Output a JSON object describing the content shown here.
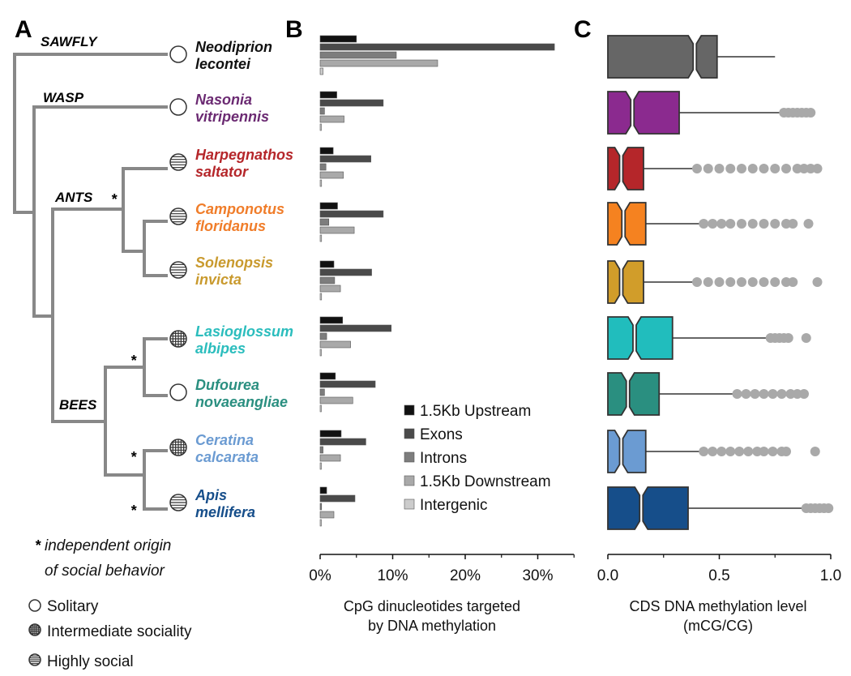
{
  "panels": {
    "a": "A",
    "b": "B",
    "c": "C"
  },
  "groups": [
    {
      "name": "SAWFLY",
      "color": "#111111"
    },
    {
      "name": "WASP",
      "color": "#6b2a72"
    },
    {
      "name": "ANTS",
      "color": "#f07d2a"
    },
    {
      "name": "BEES",
      "color": "#1f6a96"
    }
  ],
  "species": [
    {
      "genus": "Neodiprion",
      "epithet": "lecontei",
      "color": "#111111",
      "social": "solitary"
    },
    {
      "genus": "Nasonia",
      "epithet": "vitripennis",
      "color": "#6b2a72",
      "social": "solitary"
    },
    {
      "genus": "Harpegnathos",
      "epithet": "saltator",
      "color": "#b5262a",
      "social": "high"
    },
    {
      "genus": "Camponotus",
      "epithet": "floridanus",
      "color": "#f07d2a",
      "social": "high"
    },
    {
      "genus": "Solenopsis",
      "epithet": "invicta",
      "color": "#c99a2e",
      "social": "high"
    },
    {
      "genus": "Lasioglossum",
      "epithet": "albipes",
      "color": "#2bbdbd",
      "social": "intermediate"
    },
    {
      "genus": "Dufourea",
      "epithet": "novaeangliae",
      "color": "#2a8f80",
      "social": "solitary"
    },
    {
      "genus": "Ceratina",
      "epithet": "calcarata",
      "color": "#6b9bd2",
      "social": "intermediate"
    },
    {
      "genus": "Apis",
      "epithet": "mellifera",
      "color": "#164e8a",
      "social": "high"
    }
  ],
  "origin_marker": "*",
  "origin_note": [
    "independent origin",
    "of social behavior"
  ],
  "sociality_legend": [
    "Solitary",
    "Intermediate sociality",
    "Highly social"
  ],
  "chart_data": [
    {
      "type": "bar",
      "orientation": "horizontal",
      "categories": [
        "Neodiprion lecontei",
        "Nasonia vitripennis",
        "Harpegnathos saltator",
        "Camponotus floridanus",
        "Solenopsis invicta",
        "Lasioglossum albipes",
        "Dufourea novaeangliae",
        "Ceratina calcarata",
        "Apis mellifera"
      ],
      "series": [
        {
          "name": "1.5Kb Upstream",
          "color": "#111111",
          "values": [
            5.0,
            2.3,
            1.8,
            2.4,
            1.9,
            3.1,
            2.1,
            2.9,
            0.9
          ]
        },
        {
          "name": "Exons",
          "color": "#4a4a4a",
          "values": [
            32.3,
            8.7,
            7.0,
            8.7,
            7.1,
            9.8,
            7.6,
            6.3,
            4.8
          ]
        },
        {
          "name": "Introns",
          "color": "#7d7d7d",
          "values": [
            10.5,
            0.6,
            0.8,
            1.2,
            2.0,
            0.9,
            0.6,
            0.4,
            0.2
          ]
        },
        {
          "name": "1.5Kb Downstream",
          "color": "#a9a9a9",
          "values": [
            16.2,
            3.3,
            3.2,
            4.7,
            2.8,
            4.2,
            4.5,
            2.8,
            1.9
          ]
        },
        {
          "name": "Intergenic",
          "color": "#cccccc",
          "values": [
            0.4,
            0.1,
            0.2,
            0.2,
            0.2,
            0.1,
            0.1,
            0.1,
            0.1
          ]
        }
      ],
      "xlim": [
        0,
        35
      ],
      "xticks": [
        "0%",
        "10%",
        "20%",
        "30%"
      ],
      "xlabel": [
        "CpG dinucleotides targeted",
        "by DNA methylation"
      ],
      "legend_position": "bottom-right"
    },
    {
      "type": "boxplot",
      "orientation": "horizontal",
      "categories": [
        "Neodiprion lecontei",
        "Nasonia vitripennis",
        "Harpegnathos saltator",
        "Camponotus floridanus",
        "Solenopsis invicta",
        "Lasioglossum albipes",
        "Dufourea novaeangliae",
        "Ceratina calcarata",
        "Apis mellifera"
      ],
      "boxes": [
        {
          "q1": 0.0,
          "median": 0.39,
          "q3": 0.49,
          "whisker_high": 0.75,
          "outliers": [],
          "color": "#666666"
        },
        {
          "q1": 0.0,
          "median": 0.11,
          "q3": 0.32,
          "whisker_high": 0.78,
          "outliers": [
            0.79,
            0.81,
            0.83,
            0.85,
            0.87,
            0.89,
            0.91
          ],
          "color": "#8b2a8f"
        },
        {
          "q1": 0.0,
          "median": 0.06,
          "q3": 0.16,
          "whisker_high": 0.39,
          "outliers": [
            0.4,
            0.45,
            0.5,
            0.55,
            0.6,
            0.65,
            0.7,
            0.75,
            0.8,
            0.85,
            0.88,
            0.91,
            0.94
          ],
          "color": "#b5262a"
        },
        {
          "q1": 0.0,
          "median": 0.07,
          "q3": 0.17,
          "whisker_high": 0.42,
          "outliers": [
            0.43,
            0.47,
            0.51,
            0.55,
            0.6,
            0.65,
            0.7,
            0.75,
            0.8,
            0.83,
            0.9
          ],
          "color": "#f58220"
        },
        {
          "q1": 0.0,
          "median": 0.06,
          "q3": 0.16,
          "whisker_high": 0.39,
          "outliers": [
            0.4,
            0.45,
            0.5,
            0.55,
            0.6,
            0.65,
            0.7,
            0.75,
            0.8,
            0.83,
            0.94
          ],
          "color": "#d19d2a"
        },
        {
          "q1": 0.0,
          "median": 0.12,
          "q3": 0.29,
          "whisker_high": 0.72,
          "outliers": [
            0.73,
            0.75,
            0.77,
            0.79,
            0.81,
            0.89
          ],
          "color": "#21bdbd"
        },
        {
          "q1": 0.0,
          "median": 0.09,
          "q3": 0.23,
          "whisker_high": 0.57,
          "outliers": [
            0.58,
            0.62,
            0.66,
            0.7,
            0.74,
            0.78,
            0.82,
            0.85,
            0.88
          ],
          "color": "#2a8f80"
        },
        {
          "q1": 0.0,
          "median": 0.06,
          "q3": 0.17,
          "whisker_high": 0.42,
          "outliers": [
            0.43,
            0.47,
            0.51,
            0.55,
            0.59,
            0.63,
            0.67,
            0.7,
            0.74,
            0.78,
            0.8,
            0.93
          ],
          "color": "#6b9bd2"
        },
        {
          "q1": 0.0,
          "median": 0.15,
          "q3": 0.36,
          "whisker_high": 0.88,
          "outliers": [
            0.89,
            0.91,
            0.93,
            0.95,
            0.97,
            0.99
          ],
          "color": "#164e8a"
        }
      ],
      "xlim": [
        0,
        1
      ],
      "xticks": [
        "0.0",
        "0.5",
        "1.0"
      ],
      "xlabel": [
        "CDS DNA methylation level",
        "(mCG/CG)"
      ],
      "outlier_color": "#a9a9a9"
    }
  ]
}
